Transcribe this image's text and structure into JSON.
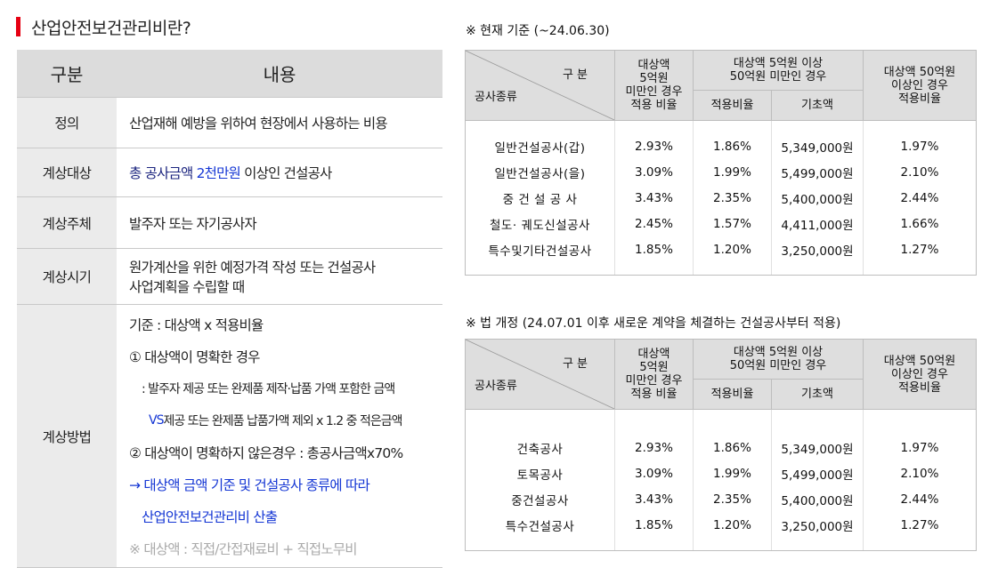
{
  "left": {
    "title": "산업안전보건관리비란?",
    "header": {
      "col1": "구분",
      "col2": "내용"
    },
    "rows": {
      "definition": {
        "label": "정의",
        "content": "산업재해 예방을 위하여 현장에서 사용하는 비용"
      },
      "target": {
        "label": "계상대상",
        "part1": "총 공사금액 ",
        "part2": "2천만원",
        "part3": " 이상인 건설공사"
      },
      "subject": {
        "label": "계상주체",
        "content": "발주자 또는 자기공사자"
      },
      "timing": {
        "label": "계상시기",
        "line1": "원가계산을 위한 예정가격 작성 또는 건설공사",
        "line2": "사업계획을 수립할 때"
      },
      "method": {
        "label": "계상방법",
        "line1": "기준 : 대상액 x 적용비율",
        "line2": "① 대상액이 명확한 경우",
        "line3": ": 발주자 제공 또는 완제품 제작·납품 가액 포함한 금액",
        "line4_vs": "VS",
        "line4_rest": " 제공 또는 완제품 납품가액 제외 x 1.2 중 적은금액",
        "line5": "② 대상액이 명확하지 않은경우 : 총공사금액x70%",
        "line6": "→ 대상액 금액 기준 및 건설공사 종류에 따라",
        "line7": "산업안전보건관리비 산출",
        "line8": "※ 대상액 : 직접/간접재료비 + 직접노무비"
      }
    }
  },
  "current": {
    "heading": "※ 현재 기준 (~24.06.30)",
    "header": {
      "diag_top": "구 분",
      "diag_bottom": "공사종류",
      "under5_l1": "대상액",
      "under5_l2": "5억원",
      "under5_l3": "미만인 경우",
      "under5_l4": "적용 비율",
      "mid_l1": "대상액 5억원 이상",
      "mid_l2": "50억원 미만인 경우",
      "rate": "적용비율",
      "base": "기초액",
      "over50_l1": "대상액 50억원",
      "over50_l2": "이상인 경우",
      "over50_l3": "적용비율"
    },
    "rows": [
      {
        "type": "일반건설공사(갑)",
        "under5": "2.93%",
        "mid_rate": "1.86%",
        "mid_base": "5,349,000원",
        "over50": "1.97%"
      },
      {
        "type": "일반건설공사(을)",
        "under5": "3.09%",
        "mid_rate": "1.99%",
        "mid_base": "5,499,000원",
        "over50": "2.10%"
      },
      {
        "type": "중 건 설 공 사",
        "under5": "3.43%",
        "mid_rate": "2.35%",
        "mid_base": "5,400,000원",
        "over50": "2.44%"
      },
      {
        "type": "철도· 궤도신설공사",
        "under5": "2.45%",
        "mid_rate": "1.57%",
        "mid_base": "4,411,000원",
        "over50": "1.66%"
      },
      {
        "type": "특수및기타건설공사",
        "under5": "1.85%",
        "mid_rate": "1.20%",
        "mid_base": "3,250,000원",
        "over50": "1.27%"
      }
    ]
  },
  "revised": {
    "heading": "※ 법 개정 (24.07.01 이후 새로운 계약을 체결하는 건설공사부터 적용)",
    "header": {
      "diag_top": "구 분",
      "diag_bottom": "공사종류",
      "under5_l1": "대상액",
      "under5_l2": "5억원",
      "under5_l3": "미만인 경우",
      "under5_l4": "적용 비율",
      "mid_l1": "대상액 5억원 이상",
      "mid_l2": "50억원 미만인 경우",
      "rate": "적용비율",
      "base": "기초액",
      "over50_l1": "대상액 50억원",
      "over50_l2": "이상인 경우",
      "over50_l3": "적용비율"
    },
    "rows": [
      {
        "type": "건축공사",
        "under5": "2.93%",
        "mid_rate": "1.86%",
        "mid_base": "5,349,000원",
        "over50": "1.97%"
      },
      {
        "type": "토목공사",
        "under5": "3.09%",
        "mid_rate": "1.99%",
        "mid_base": "5,499,000원",
        "over50": "2.10%"
      },
      {
        "type": "중건설공사",
        "under5": "3.43%",
        "mid_rate": "2.35%",
        "mid_base": "5,400,000원",
        "over50": "2.44%"
      },
      {
        "type": "특수건설공사",
        "under5": "1.85%",
        "mid_rate": "1.20%",
        "mid_base": "3,250,000원",
        "over50": "1.27%"
      }
    ]
  }
}
